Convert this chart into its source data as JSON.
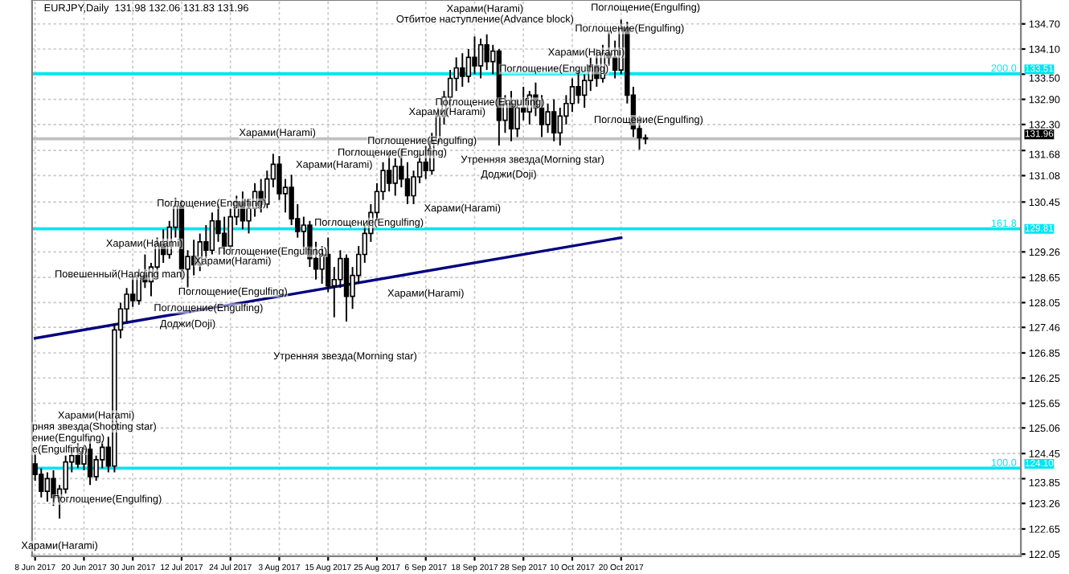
{
  "chart_data": {
    "type": "candlestick",
    "title": "EURJPY,Daily  131.98 132.06 131.83 131.96",
    "categories": [
      "8 Jun 2017",
      null,
      null,
      null,
      null,
      null,
      null,
      null,
      "20 Jun 2017",
      null,
      null,
      null,
      null,
      null,
      null,
      null,
      "30 Jun 2017",
      null,
      null,
      null,
      null,
      null,
      null,
      null,
      "12 Jul 2017",
      null,
      null,
      null,
      null,
      null,
      null,
      null,
      "24 Jul 2017",
      null,
      null,
      null,
      null,
      null,
      null,
      null,
      "3 Aug 2017",
      null,
      null,
      null,
      null,
      null,
      null,
      null,
      "15 Aug 2017",
      null,
      null,
      null,
      null,
      null,
      null,
      null,
      "25 Aug 2017",
      null,
      null,
      null,
      null,
      null,
      null,
      null,
      "6 Sep 2017",
      null,
      null,
      null,
      null,
      null,
      null,
      null,
      "18 Sep 2017",
      null,
      null,
      null,
      null,
      null,
      null,
      null,
      "28 Sep 2017",
      null,
      null,
      null,
      null,
      null,
      null,
      null,
      "10 Oct 2017",
      null,
      null,
      null,
      null,
      null,
      null,
      null,
      "20 Oct 2017",
      null,
      null,
      null,
      null,
      null,
      null,
      null,
      null,
      null,
      null,
      null,
      null,
      null,
      null,
      null,
      null,
      null,
      null,
      null,
      null,
      null,
      null,
      null,
      null,
      null,
      null,
      null,
      null,
      null,
      null,
      null,
      null,
      null,
      null,
      null,
      null,
      null,
      null,
      null,
      null,
      null,
      null,
      null,
      null,
      null,
      null,
      null,
      null,
      null,
      null,
      null,
      null,
      null,
      null,
      null,
      null,
      null,
      null,
      null,
      null,
      null,
      null,
      null,
      null,
      null
    ],
    "ohlc": [
      [
        124.2,
        124.45,
        123.8,
        123.95
      ],
      [
        123.95,
        124.1,
        123.4,
        123.55
      ],
      [
        123.55,
        124.0,
        123.3,
        123.85
      ],
      [
        123.85,
        124.05,
        123.2,
        123.4
      ],
      [
        123.4,
        123.7,
        122.9,
        123.6
      ],
      [
        123.6,
        124.4,
        123.5,
        124.25
      ],
      [
        124.25,
        124.6,
        124.0,
        124.4
      ],
      [
        124.4,
        124.7,
        124.1,
        124.2
      ],
      [
        124.2,
        124.65,
        124.05,
        124.55
      ],
      [
        124.55,
        124.8,
        123.7,
        123.9
      ],
      [
        123.9,
        124.4,
        123.8,
        124.3
      ],
      [
        124.3,
        124.75,
        124.1,
        124.6
      ],
      [
        124.6,
        124.85,
        124.0,
        124.15
      ],
      [
        124.15,
        127.55,
        124.0,
        127.4
      ],
      [
        127.4,
        128.05,
        127.2,
        127.9
      ],
      [
        127.9,
        128.4,
        127.6,
        128.25
      ],
      [
        128.25,
        128.7,
        127.95,
        128.1
      ],
      [
        128.1,
        128.85,
        128.0,
        128.7
      ],
      [
        128.7,
        129.2,
        128.4,
        128.55
      ],
      [
        128.55,
        129.0,
        128.2,
        128.9
      ],
      [
        128.9,
        129.6,
        128.7,
        129.45
      ],
      [
        129.45,
        129.8,
        129.0,
        129.2
      ],
      [
        129.2,
        130.0,
        129.1,
        129.85
      ],
      [
        129.85,
        130.55,
        129.6,
        130.35
      ],
      [
        130.35,
        130.5,
        128.6,
        128.85
      ],
      [
        128.85,
        129.3,
        128.4,
        129.15
      ],
      [
        129.15,
        129.55,
        128.7,
        128.95
      ],
      [
        128.95,
        129.7,
        128.8,
        129.5
      ],
      [
        129.5,
        129.9,
        129.1,
        129.3
      ],
      [
        129.3,
        130.2,
        129.2,
        130.0
      ],
      [
        130.0,
        130.4,
        129.5,
        129.7
      ],
      [
        129.7,
        130.1,
        129.2,
        129.4
      ],
      [
        129.4,
        130.3,
        129.3,
        130.1
      ],
      [
        130.1,
        130.6,
        129.9,
        130.45
      ],
      [
        130.45,
        130.7,
        129.8,
        130.0
      ],
      [
        130.0,
        130.5,
        129.7,
        130.3
      ],
      [
        130.3,
        130.9,
        130.1,
        130.7
      ],
      [
        130.7,
        131.0,
        130.2,
        130.4
      ],
      [
        130.4,
        131.2,
        130.3,
        131.0
      ],
      [
        131.0,
        131.6,
        130.8,
        131.35
      ],
      [
        131.35,
        131.55,
        130.5,
        130.65
      ],
      [
        130.65,
        131.0,
        130.2,
        130.8
      ],
      [
        130.8,
        131.1,
        129.9,
        130.05
      ],
      [
        130.05,
        130.4,
        129.6,
        129.75
      ],
      [
        129.75,
        130.1,
        129.3,
        129.9
      ],
      [
        129.9,
        130.0,
        128.9,
        129.1
      ],
      [
        129.1,
        129.5,
        128.6,
        128.85
      ],
      [
        128.85,
        129.4,
        128.5,
        129.2
      ],
      [
        129.2,
        129.6,
        128.3,
        128.45
      ],
      [
        128.45,
        128.9,
        127.7,
        128.6
      ],
      [
        128.6,
        129.3,
        128.4,
        129.1
      ],
      [
        129.1,
        129.2,
        127.6,
        128.2
      ],
      [
        128.2,
        128.9,
        127.9,
        128.7
      ],
      [
        128.7,
        129.4,
        128.5,
        129.2
      ],
      [
        129.2,
        129.9,
        129.0,
        129.7
      ],
      [
        129.7,
        130.4,
        129.5,
        130.2
      ],
      [
        130.2,
        130.9,
        130.0,
        130.7
      ],
      [
        130.7,
        131.4,
        130.5,
        131.2
      ],
      [
        131.2,
        131.6,
        130.7,
        130.9
      ],
      [
        130.9,
        131.5,
        130.6,
        131.3
      ],
      [
        131.3,
        131.7,
        130.8,
        131.0
      ],
      [
        131.0,
        131.4,
        130.4,
        130.6
      ],
      [
        130.6,
        131.2,
        130.4,
        131.05
      ],
      [
        131.05,
        131.6,
        130.9,
        131.4
      ],
      [
        131.4,
        131.8,
        131.0,
        131.2
      ],
      [
        131.2,
        132.1,
        131.1,
        131.9
      ],
      [
        131.9,
        132.7,
        131.8,
        132.5
      ],
      [
        132.5,
        133.1,
        132.3,
        132.95
      ],
      [
        132.95,
        133.6,
        132.7,
        133.4
      ],
      [
        133.4,
        133.9,
        133.1,
        133.65
      ],
      [
        133.65,
        134.0,
        133.2,
        133.45
      ],
      [
        133.45,
        134.1,
        133.3,
        133.9
      ],
      [
        133.9,
        134.4,
        133.5,
        133.7
      ],
      [
        133.7,
        134.35,
        133.4,
        134.2
      ],
      [
        134.2,
        134.45,
        133.6,
        133.8
      ],
      [
        133.8,
        134.2,
        133.5,
        134.05
      ],
      [
        134.05,
        134.1,
        131.8,
        132.4
      ],
      [
        132.4,
        133.0,
        132.1,
        132.8
      ],
      [
        132.8,
        133.1,
        131.9,
        132.2
      ],
      [
        132.2,
        132.9,
        132.0,
        132.7
      ],
      [
        132.7,
        133.2,
        132.4,
        132.6
      ],
      [
        132.6,
        133.1,
        132.3,
        133.0
      ],
      [
        133.0,
        133.3,
        132.5,
        132.7
      ],
      [
        132.7,
        133.0,
        132.0,
        132.3
      ],
      [
        132.3,
        132.8,
        132.1,
        132.6
      ],
      [
        132.6,
        132.9,
        131.9,
        132.1
      ],
      [
        132.1,
        132.7,
        131.8,
        132.5
      ],
      [
        132.5,
        133.0,
        132.3,
        132.8
      ],
      [
        132.8,
        133.4,
        132.6,
        133.2
      ],
      [
        133.2,
        133.6,
        132.8,
        133.0
      ],
      [
        133.0,
        133.5,
        132.7,
        133.35
      ],
      [
        133.35,
        133.9,
        133.1,
        133.7
      ],
      [
        133.7,
        134.1,
        133.2,
        133.4
      ],
      [
        133.4,
        134.2,
        133.3,
        134.0
      ],
      [
        134.0,
        134.5,
        133.7,
        133.9
      ],
      [
        133.9,
        134.3,
        133.4,
        133.6
      ],
      [
        133.6,
        134.8,
        133.5,
        134.6
      ],
      [
        134.6,
        134.75,
        132.8,
        133.0
      ],
      [
        133.0,
        133.2,
        132.0,
        132.2
      ],
      [
        132.2,
        132.5,
        131.7,
        131.98
      ],
      [
        131.98,
        132.06,
        131.83,
        131.96
      ],
      null,
      null,
      null,
      null,
      null,
      null,
      null,
      null,
      null,
      null,
      null,
      null,
      null,
      null,
      null,
      null,
      null,
      null,
      null,
      null,
      null,
      null,
      null,
      null,
      null,
      null,
      null,
      null,
      null,
      null,
      null,
      null,
      null,
      null,
      null,
      null,
      null,
      null,
      null,
      null,
      null,
      null,
      null,
      null,
      null,
      null,
      null,
      null,
      null,
      null,
      null,
      null,
      null,
      null,
      null,
      null,
      null,
      null,
      null,
      null,
      null
    ],
    "series": [
      {
        "type": "line",
        "color": "#000080",
        "x": [
          "8 Jun 2017",
          "20 Oct 2017"
        ],
        "values": [
          127.2,
          129.6
        ]
      }
    ],
    "ylim": [
      122.0,
      135.27
    ],
    "yticks": [
      {
        "value": 134.7,
        "label": "134.70"
      },
      {
        "value": 134.1,
        "label": "134.10"
      },
      {
        "value": 133.5,
        "label": "133.50"
      },
      {
        "value": 132.9,
        "label": "132.90"
      },
      {
        "value": 132.3,
        "label": "132.30"
      },
      131.68,
      131.08,
      130.45,
      129.26,
      128.65,
      128.05,
      127.46,
      126.85,
      126.25,
      125.65,
      125.06,
      124.45,
      123.85,
      123.26,
      122.65,
      122.05
    ],
    "grid": true,
    "ref_lines": [
      {
        "axis": "y",
        "value": 133.51,
        "label": "133.51",
        "color": "#00e5f0"
      },
      {
        "axis": "y",
        "value": 129.81,
        "label": "129.81",
        "color": "#00e5f0"
      },
      {
        "axis": "y",
        "value": 124.1,
        "label": "124.10",
        "color": "#00e5f0"
      },
      {
        "axis": "y",
        "value": 131.96,
        "label": "131.96",
        "color": "#c0c0c0"
      }
    ],
    "annotations": [
      "Харами(Harami)",
      "Отбитое наступление(Advance block)",
      "Поглощение(Engulfing)",
      "Поглощение(Engulfing)",
      "Харами(Harami)",
      "Поглощение(Engulfing)",
      "Поглощение(Engulfing)",
      "Поглощение(Engulfing)",
      "Харами(Harami)",
      "Поглощение(Engulfing)",
      "Поглощение(Engulfing)",
      "Утренняя звезда(Morning star)",
      "Доджи(Doji)",
      "Харами(Harami)",
      "Харами(Harami)",
      "Харами(Harami)",
      "Поглощение(Engulfing)",
      "Поглощение(Engulfing)",
      "Харами(Harami)",
      "Поглощение(Engulfing)",
      "Харами(Harami)",
      "Повешенный(Hanging man)",
      "Поглощение(Engulfing)",
      "Поглощение(Engulfing)",
      "Доджи(Doji)",
      "Утренняя звезда(Morning star)",
      "Харами(Harami)",
      "Харами(Harami)",
      "рняя звезда(Shooting star)",
      "ение(Engulfing)",
      "е(Engulfing)",
      "Поглощение(Engulfing)",
      "Харами(Harami)",
      "200.0",
      "161.8",
      "100.0"
    ]
  }
}
